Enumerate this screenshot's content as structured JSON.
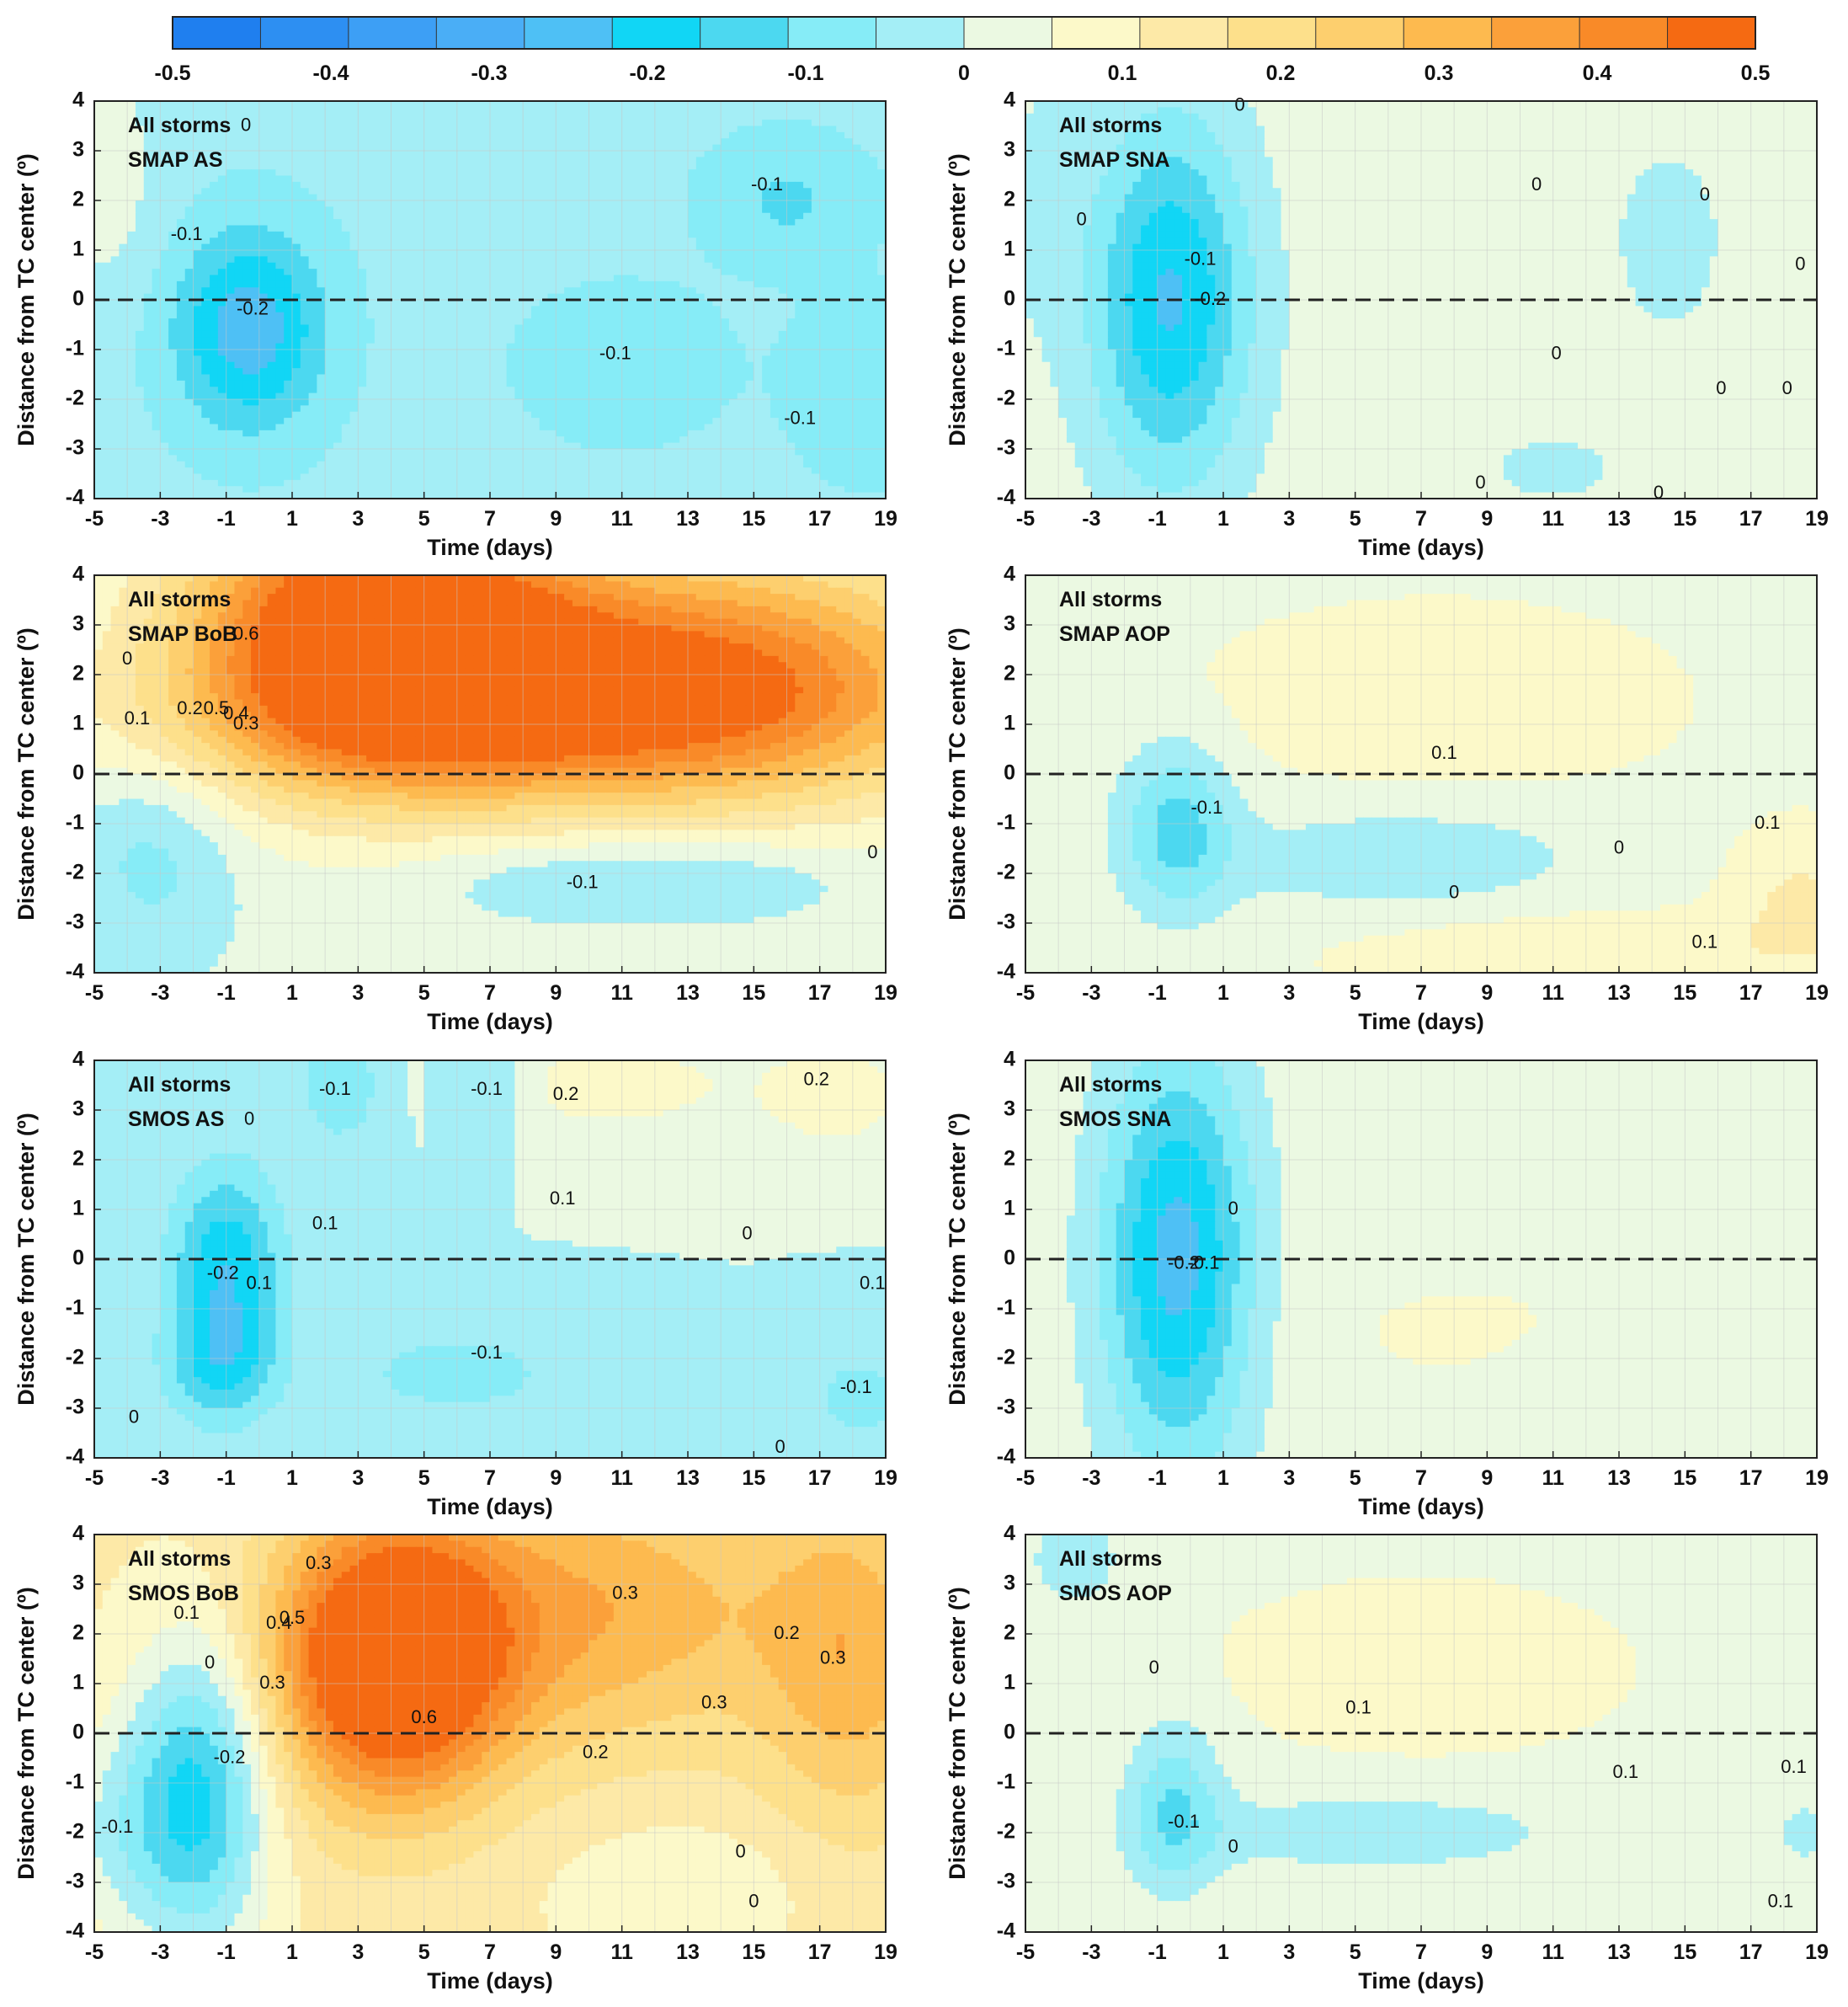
{
  "colors": {
    "scale": [
      "#1f7fef",
      "#2d8ff2",
      "#3d9ff5",
      "#4aaef6",
      "#4ec0f5",
      "#11d6f5",
      "#4cd8f0",
      "#86ecf7",
      "#a4eef6",
      "#ebf9e2",
      "#fcf9c9",
      "#fde9a7",
      "#fde08b",
      "#fdcf6e",
      "#fdba4f",
      "#fba03a",
      "#f98a28",
      "#f56a12"
    ],
    "contour": "#3a3a3a",
    "grid": "#c8c8c8"
  },
  "colorbar": {
    "ticks": [
      "-0.5",
      "-0.4",
      "-0.3",
      "-0.2",
      "-0.1",
      "0",
      "0.1",
      "0.2",
      "0.3",
      "0.4",
      "0.5"
    ],
    "range": [
      -0.5,
      0.5
    ]
  },
  "chart_data": [
    {
      "type": "heatmap",
      "label_line1": "All storms",
      "label_line2": "SMAP AS",
      "xlabel": "Time (days)",
      "ylabel": "Distance from TC center (º)",
      "xlim": [
        -5,
        19
      ],
      "ylim": [
        -4,
        4
      ],
      "xticks": [
        "-5",
        "-3",
        "-1",
        "1",
        "3",
        "5",
        "7",
        "9",
        "11",
        "13",
        "15",
        "17",
        "19"
      ],
      "yticks": [
        "4",
        "3",
        "2",
        "1",
        "0",
        "-1",
        "-2",
        "-3",
        "-4"
      ],
      "dashed_zero_line": true,
      "base": -0.04,
      "features": [
        {
          "t": -0.3,
          "d": -0.6,
          "st": 1.6,
          "sd": 1.4,
          "a": -0.22
        },
        {
          "t": 11,
          "d": -1.3,
          "st": 2.0,
          "sd": 1.0,
          "a": -0.07
        },
        {
          "t": 16,
          "d": 2.0,
          "st": 1.7,
          "sd": 0.9,
          "a": -0.08
        },
        {
          "t": 18.5,
          "d": -1.8,
          "st": 1.6,
          "sd": 1.2,
          "a": -0.07
        },
        {
          "t": -4.7,
          "d": 2.5,
          "st": 1.2,
          "sd": 1.8,
          "a": 0.07
        }
      ],
      "contour_labels": [
        {
          "text": "0",
          "t": -0.4,
          "d": 3.5
        },
        {
          "text": "-0.1",
          "t": -2.2,
          "d": 1.3
        },
        {
          "text": "-0.2",
          "t": -0.2,
          "d": -0.2
        },
        {
          "text": "-0.1",
          "t": 15.4,
          "d": 2.3
        },
        {
          "text": "-0.1",
          "t": 10.8,
          "d": -1.1
        },
        {
          "text": "-0.1",
          "t": 16.4,
          "d": -2.4
        }
      ]
    },
    {
      "type": "heatmap",
      "label_line1": "All storms",
      "label_line2": "SMAP SNA",
      "xlabel": "Time (days)",
      "ylabel": "Distance from TC center (º)",
      "xlim": [
        -5,
        19
      ],
      "ylim": [
        -4,
        4
      ],
      "xticks": [
        "-5",
        "-3",
        "-1",
        "1",
        "3",
        "5",
        "7",
        "9",
        "11",
        "13",
        "15",
        "17",
        "19"
      ],
      "yticks": [
        "4",
        "3",
        "2",
        "1",
        "0",
        "-1",
        "-2",
        "-3",
        "-4"
      ],
      "dashed_zero_line": true,
      "base": 0.03,
      "features": [
        {
          "t": -0.6,
          "d": 0.0,
          "st": 1.7,
          "sd": 2.6,
          "a": -0.26
        },
        {
          "t": 14.5,
          "d": 1.2,
          "st": 1.4,
          "sd": 1.6,
          "a": -0.05
        },
        {
          "t": 11.0,
          "d": -3.4,
          "st": 2.0,
          "sd": 0.7,
          "a": -0.04
        },
        {
          "t": -4.6,
          "d": 2.0,
          "st": 1.0,
          "sd": 2.0,
          "a": -0.04
        }
      ],
      "contour_labels": [
        {
          "text": "0",
          "t": 1.5,
          "d": 3.9
        },
        {
          "text": "0",
          "t": -3.3,
          "d": 1.6
        },
        {
          "text": "-0.1",
          "t": 0.3,
          "d": 0.8
        },
        {
          "text": "-0.2",
          "t": 0.6,
          "d": 0.0
        },
        {
          "text": "0",
          "t": 10.5,
          "d": 2.3
        },
        {
          "text": "0",
          "t": 15.6,
          "d": 2.1
        },
        {
          "text": "0",
          "t": 18.5,
          "d": 0.7
        },
        {
          "text": "0",
          "t": 11.1,
          "d": -1.1
        },
        {
          "text": "0",
          "t": 16.1,
          "d": -1.8
        },
        {
          "text": "0",
          "t": 18.1,
          "d": -1.8
        },
        {
          "text": "0",
          "t": 8.8,
          "d": -3.7
        },
        {
          "text": "0",
          "t": 14.2,
          "d": -3.9
        }
      ]
    },
    {
      "type": "heatmap",
      "label_line1": "All storms",
      "label_line2": "SMAP BoB",
      "xlabel": "Time (days)",
      "ylabel": "Distance from TC center (º)",
      "xlim": [
        -5,
        19
      ],
      "ylim": [
        -4,
        4
      ],
      "xticks": [
        "-5",
        "-3",
        "-1",
        "1",
        "3",
        "5",
        "7",
        "9",
        "11",
        "13",
        "15",
        "17",
        "19"
      ],
      "yticks": [
        "4",
        "3",
        "2",
        "1",
        "0",
        "-1",
        "-2",
        "-3",
        "-4"
      ],
      "dashed_zero_line": true,
      "base": 0.02,
      "features": [
        {
          "t": 3.5,
          "d": 3.0,
          "st": 4.0,
          "sd": 2.0,
          "a": 0.55
        },
        {
          "t": 13.5,
          "d": 2.0,
          "st": 6.0,
          "sd": 1.8,
          "a": 0.4
        },
        {
          "t": 6.5,
          "d": 1.0,
          "st": 8.0,
          "sd": 1.2,
          "a": 0.18
        },
        {
          "t": -3.2,
          "d": -1.5,
          "st": 1.8,
          "sd": 1.6,
          "a": -0.1
        },
        {
          "t": 9.5,
          "d": -2.1,
          "st": 3.2,
          "sd": 0.6,
          "a": -0.08
        },
        {
          "t": 14.5,
          "d": -2.1,
          "st": 2.8,
          "sd": 0.6,
          "a": -0.06
        }
      ],
      "contour_labels": [
        {
          "text": "0.6",
          "t": -0.4,
          "d": 2.8
        },
        {
          "text": "0.5",
          "t": -1.3,
          "d": 1.3
        },
        {
          "text": "0.4",
          "t": -0.7,
          "d": 1.2
        },
        {
          "text": "0.3",
          "t": -0.4,
          "d": 1.0
        },
        {
          "text": "0.2",
          "t": -2.1,
          "d": 1.3
        },
        {
          "text": "0.1",
          "t": -3.7,
          "d": 1.1
        },
        {
          "text": "0",
          "t": -4.0,
          "d": 2.3
        },
        {
          "text": "-0.1",
          "t": 9.8,
          "d": -2.2
        },
        {
          "text": "0",
          "t": 18.6,
          "d": -1.6
        }
      ]
    },
    {
      "type": "heatmap",
      "label_line1": "All storms",
      "label_line2": "SMAP AOP",
      "xlabel": "Time (days)",
      "ylabel": "Distance from TC center (º)",
      "xlim": [
        -5,
        19
      ],
      "ylim": [
        -4,
        4
      ],
      "xticks": [
        "-5",
        "-3",
        "-1",
        "1",
        "3",
        "5",
        "7",
        "9",
        "11",
        "13",
        "15",
        "17",
        "19"
      ],
      "yticks": [
        "4",
        "3",
        "2",
        "1",
        "0",
        "-1",
        "-2",
        "-3",
        "-4"
      ],
      "dashed_zero_line": true,
      "base": 0.04,
      "features": [
        {
          "t": 7.5,
          "d": 1.5,
          "st": 4.5,
          "sd": 1.2,
          "a": 0.07
        },
        {
          "t": -0.4,
          "d": -1.1,
          "st": 1.2,
          "sd": 1.2,
          "a": -0.17
        },
        {
          "t": 6.5,
          "d": -1.7,
          "st": 4.0,
          "sd": 0.8,
          "a": -0.08
        },
        {
          "t": 12.0,
          "d": -3.6,
          "st": 5.0,
          "sd": 0.6,
          "a": 0.07
        },
        {
          "t": 18.5,
          "d": -2.5,
          "st": 1.5,
          "sd": 1.0,
          "a": 0.08
        },
        {
          "t": -4.3,
          "d": 1.5,
          "st": 1.0,
          "sd": 1.5,
          "a": -0.04
        }
      ],
      "contour_labels": [
        {
          "text": "0.1",
          "t": 7.7,
          "d": 0.4
        },
        {
          "text": "-0.1",
          "t": 0.5,
          "d": -0.7
        },
        {
          "text": "0",
          "t": 13.0,
          "d": -1.5
        },
        {
          "text": "0",
          "t": 8.0,
          "d": -2.4
        },
        {
          "text": "0.1",
          "t": 17.5,
          "d": -1.0
        },
        {
          "text": "0.1",
          "t": 15.6,
          "d": -3.4
        }
      ]
    },
    {
      "type": "heatmap",
      "label_line1": "All storms",
      "label_line2": "SMOS AS",
      "xlabel": "Time (days)",
      "ylabel": "Distance from TC center (º)",
      "xlim": [
        -5,
        19
      ],
      "ylim": [
        -4,
        4
      ],
      "xticks": [
        "-5",
        "-3",
        "-1",
        "1",
        "3",
        "5",
        "7",
        "9",
        "11",
        "13",
        "15",
        "17",
        "19"
      ],
      "yticks": [
        "4",
        "3",
        "2",
        "1",
        "0",
        "-1",
        "-2",
        "-3",
        "-4"
      ],
      "dashed_zero_line": true,
      "base": 0.0,
      "features": [
        {
          "t": -1.0,
          "d": -0.3,
          "st": 1.2,
          "sd": 1.5,
          "a": -0.22
        },
        {
          "t": -1.2,
          "d": -2.2,
          "st": 1.2,
          "sd": 0.8,
          "a": -0.12
        },
        {
          "t": 2.5,
          "d": 3.5,
          "st": 1.0,
          "sd": 0.9,
          "a": -0.1
        },
        {
          "t": 6.8,
          "d": 3.5,
          "st": 1.0,
          "sd": 0.8,
          "a": -0.09
        },
        {
          "t": 6.0,
          "d": -2.3,
          "st": 2.5,
          "sd": 0.7,
          "a": -0.08
        },
        {
          "t": 10.5,
          "d": 3.5,
          "st": 3.5,
          "sd": 0.8,
          "a": 0.08
        },
        {
          "t": 17.5,
          "d": 3.3,
          "st": 1.4,
          "sd": 0.7,
          "a": 0.1
        },
        {
          "t": 18.2,
          "d": -2.8,
          "st": 1.2,
          "sd": 0.7,
          "a": -0.08
        }
      ],
      "contour_labels": [
        {
          "text": "0",
          "t": -0.3,
          "d": 2.8
        },
        {
          "text": "-0.1",
          "t": 2.3,
          "d": 3.4
        },
        {
          "text": "-0.1",
          "t": 6.9,
          "d": 3.4
        },
        {
          "text": "0.2",
          "t": 9.3,
          "d": 3.3
        },
        {
          "text": "0.2",
          "t": 16.9,
          "d": 3.6
        },
        {
          "text": "0.1",
          "t": 9.2,
          "d": 1.2
        },
        {
          "text": "0.1",
          "t": 2.0,
          "d": 0.7
        },
        {
          "text": "0",
          "t": 14.8,
          "d": 0.5
        },
        {
          "text": "-0.2",
          "t": -1.1,
          "d": -0.3
        },
        {
          "text": "0.1",
          "t": 0.0,
          "d": -0.5
        },
        {
          "text": "-0.1",
          "t": 6.9,
          "d": -1.9
        },
        {
          "text": "0",
          "t": -3.8,
          "d": -3.2
        },
        {
          "text": "0",
          "t": 15.8,
          "d": -3.8
        },
        {
          "text": "0.1",
          "t": 18.6,
          "d": -0.5
        },
        {
          "text": "-0.1",
          "t": 18.1,
          "d": -2.6
        }
      ]
    },
    {
      "type": "heatmap",
      "label_line1": "All storms",
      "label_line2": "SMOS SNA",
      "xlabel": "Time (days)",
      "ylabel": "Distance from TC center (º)",
      "xlim": [
        -5,
        19
      ],
      "ylim": [
        -4,
        4
      ],
      "xticks": [
        "-5",
        "-3",
        "-1",
        "1",
        "3",
        "5",
        "7",
        "9",
        "11",
        "13",
        "15",
        "17",
        "19"
      ],
      "yticks": [
        "4",
        "3",
        "2",
        "1",
        "0",
        "-1",
        "-2",
        "-3",
        "-4"
      ],
      "dashed_zero_line": true,
      "base": 0.035,
      "features": [
        {
          "t": -0.4,
          "d": 0.0,
          "st": 1.6,
          "sd": 3.0,
          "a": -0.28
        },
        {
          "t": 9.0,
          "d": -1.5,
          "st": 4.0,
          "sd": 1.0,
          "a": 0.03
        },
        {
          "t": 14.0,
          "d": -2.5,
          "st": 3.0,
          "sd": 1.0,
          "a": -0.03
        }
      ],
      "contour_labels": [
        {
          "text": "0",
          "t": 1.3,
          "d": 1.0
        },
        {
          "text": "-0.1",
          "t": 0.4,
          "d": -0.1
        },
        {
          "text": "-0.2",
          "t": -0.2,
          "d": -0.1
        }
      ]
    },
    {
      "type": "heatmap",
      "label_line1": "All storms",
      "label_line2": "SMOS BoB",
      "xlabel": "Time (days)",
      "ylabel": "Distance from TC center (º)",
      "xlim": [
        -5,
        19
      ],
      "ylim": [
        -4,
        4
      ],
      "xticks": [
        "-5",
        "-3",
        "-1",
        "1",
        "3",
        "5",
        "7",
        "9",
        "11",
        "13",
        "15",
        "17",
        "19"
      ],
      "yticks": [
        "4",
        "3",
        "2",
        "1",
        "0",
        "-1",
        "-2",
        "-3",
        "-4"
      ],
      "dashed_zero_line": true,
      "base": 0.12,
      "features": [
        {
          "t": 4.0,
          "d": 1.5,
          "st": 2.5,
          "sd": 2.0,
          "a": 0.52
        },
        {
          "t": 10.5,
          "d": 2.5,
          "st": 4.0,
          "sd": 2.0,
          "a": 0.2
        },
        {
          "t": 18.0,
          "d": 1.5,
          "st": 2.0,
          "sd": 2.5,
          "a": 0.18
        },
        {
          "t": -1.8,
          "d": -1.2,
          "st": 1.5,
          "sd": 2.2,
          "a": -0.3
        },
        {
          "t": -4.3,
          "d": -2.0,
          "st": 1.5,
          "sd": 1.5,
          "a": -0.1
        },
        {
          "t": 13.0,
          "d": -3.0,
          "st": 3.0,
          "sd": 1.0,
          "a": -0.05
        }
      ],
      "contour_labels": [
        {
          "text": "0.3",
          "t": 1.8,
          "d": 3.4
        },
        {
          "text": "0.1",
          "t": -2.2,
          "d": 2.4
        },
        {
          "text": "0.4",
          "t": 0.6,
          "d": 2.2
        },
        {
          "text": "0.5",
          "t": 1.0,
          "d": 2.3
        },
        {
          "text": "0.3",
          "t": 0.4,
          "d": 1.0
        },
        {
          "text": "0.6",
          "t": 5.0,
          "d": 0.3
        },
        {
          "text": "0.3",
          "t": 11.1,
          "d": 2.8
        },
        {
          "text": "0.2",
          "t": 16.0,
          "d": 2.0
        },
        {
          "text": "0.3",
          "t": 17.4,
          "d": 1.5
        },
        {
          "text": "0.3",
          "t": 13.8,
          "d": 0.6
        },
        {
          "text": "0.2",
          "t": 10.2,
          "d": -0.4
        },
        {
          "text": "-0.2",
          "t": -0.9,
          "d": -0.5
        },
        {
          "text": "0",
          "t": -1.5,
          "d": 1.4
        },
        {
          "text": "-0.1",
          "t": -4.3,
          "d": -1.9
        },
        {
          "text": "0",
          "t": 14.6,
          "d": -2.4
        },
        {
          "text": "0",
          "t": 15.0,
          "d": -3.4
        }
      ]
    },
    {
      "type": "heatmap",
      "label_line1": "All storms",
      "label_line2": "SMOS AOP",
      "xlabel": "Time (days)",
      "ylabel": "Distance from TC center (º)",
      "xlim": [
        -5,
        19
      ],
      "ylim": [
        -4,
        4
      ],
      "xticks": [
        "-5",
        "-3",
        "-1",
        "1",
        "3",
        "5",
        "7",
        "9",
        "11",
        "13",
        "15",
        "17",
        "19"
      ],
      "yticks": [
        "4",
        "3",
        "2",
        "1",
        "0",
        "-1",
        "-2",
        "-3",
        "-4"
      ],
      "dashed_zero_line": true,
      "base": 0.045,
      "features": [
        {
          "t": 7.0,
          "d": 1.3,
          "st": 3.5,
          "sd": 1.0,
          "a": 0.06
        },
        {
          "t": -0.5,
          "d": -1.5,
          "st": 1.0,
          "sd": 1.2,
          "a": -0.15
        },
        {
          "t": 5.5,
          "d": -2.0,
          "st": 4.5,
          "sd": 0.6,
          "a": -0.08
        },
        {
          "t": -3.5,
          "d": 3.5,
          "st": 1.5,
          "sd": 1.0,
          "a": -0.06
        },
        {
          "t": 18.6,
          "d": -2.0,
          "st": 0.7,
          "sd": 0.6,
          "a": -0.06
        }
      ],
      "contour_labels": [
        {
          "text": "0",
          "t": -1.1,
          "d": 1.3
        },
        {
          "text": "0.1",
          "t": 5.1,
          "d": 0.5
        },
        {
          "text": "0.1",
          "t": 13.2,
          "d": -0.8
        },
        {
          "text": "0.1",
          "t": 18.3,
          "d": -0.7
        },
        {
          "text": "-0.1",
          "t": -0.2,
          "d": -1.8
        },
        {
          "text": "0",
          "t": 1.3,
          "d": -2.3
        },
        {
          "text": "0.1",
          "t": 17.9,
          "d": -3.4
        }
      ]
    }
  ]
}
